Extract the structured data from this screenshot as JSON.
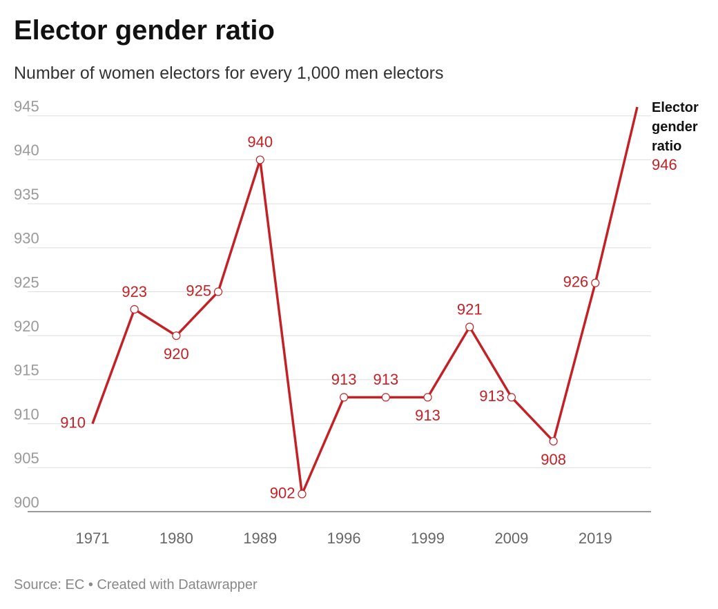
{
  "chart_data": {
    "type": "line",
    "title": "Elector gender ratio",
    "subtitle": "Number of women electors for every 1,000 men electors",
    "source": "Source: EC • Created with Datawrapper",
    "categories": [
      "1971",
      null,
      "1980",
      null,
      "1989",
      null,
      "1996",
      null,
      "1999",
      null,
      "2009",
      null,
      "2019",
      null
    ],
    "series": [
      {
        "name": "Elector gender ratio",
        "color": "#c42126",
        "values": [
          910,
          923,
          920,
          925,
          940,
          902,
          913,
          913,
          913,
          921,
          913,
          908,
          926,
          946
        ]
      }
    ],
    "ylim": [
      900,
      946
    ],
    "yticks": [
      900,
      905,
      910,
      915,
      920,
      925,
      930,
      935,
      940,
      945
    ],
    "grid": true
  }
}
